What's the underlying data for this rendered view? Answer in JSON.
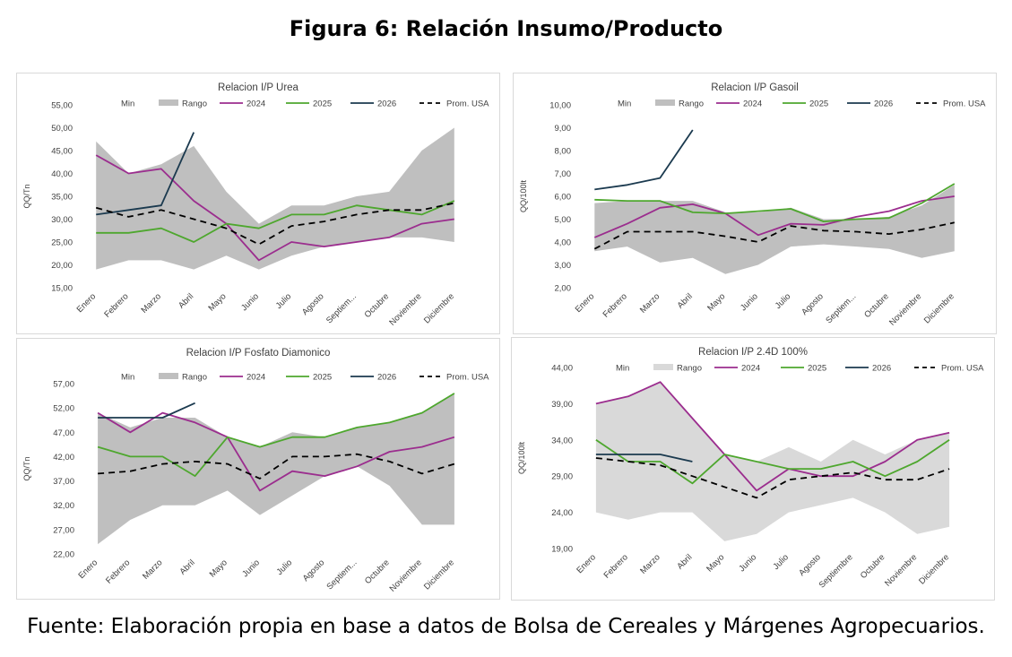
{
  "figure": {
    "title": "Figura 6: Relación Insumo/Producto",
    "source": "Fuente: Elaboración propia en base a datos de Bolsa de Cereales y Márgenes Agropecuarios."
  },
  "legend_labels": [
    "Min",
    "Rango",
    "2024",
    "2025",
    "2026",
    "Prom. USA"
  ],
  "colors": {
    "rango": "#bfbfbf",
    "rango_light": "#d9d9d9",
    "s2024": "#9b2d8e",
    "s2025": "#4ea72e",
    "s2026": "#1b3a4f",
    "prom": "#000000"
  },
  "chart_data": [
    {
      "type": "line",
      "title": "Relacion I/P Urea",
      "ylabel": "QQ/Tn",
      "ylim": [
        15,
        55
      ],
      "yticks": [
        "15,00",
        "20,00",
        "25,00",
        "30,00",
        "35,00",
        "40,00",
        "45,00",
        "50,00",
        "55,00"
      ],
      "categories": [
        "Enero",
        "Febrero",
        "Marzo",
        "Abril",
        "Mayo",
        "Junio",
        "Julio",
        "Agosto",
        "Septiem...",
        "Octubre",
        "Noviembre",
        "Diciembre"
      ],
      "legend": [
        "Min",
        "Rango",
        "2024",
        "2025",
        "2026",
        "Prom. USA"
      ],
      "range_min": [
        19,
        21,
        21,
        19,
        22,
        19,
        22,
        24,
        25,
        26,
        26,
        25
      ],
      "range_max": [
        47,
        40,
        42,
        46,
        36,
        29,
        33,
        33,
        35,
        36,
        45,
        50
      ],
      "series": [
        {
          "name": "2024",
          "values": [
            44,
            40,
            41,
            34,
            29,
            21,
            25,
            24,
            25,
            26,
            29,
            30
          ]
        },
        {
          "name": "2025",
          "values": [
            27,
            27,
            28,
            25,
            29,
            28,
            31,
            31,
            33,
            32,
            31,
            34
          ]
        },
        {
          "name": "2026",
          "values": [
            31,
            32,
            33,
            49,
            null,
            null,
            null,
            null,
            null,
            null,
            null,
            null
          ]
        },
        {
          "name": "Prom. USA",
          "values": [
            32.5,
            30.5,
            32,
            30,
            28,
            24.5,
            28.5,
            29.5,
            31,
            32,
            32,
            33.5
          ]
        }
      ]
    },
    {
      "type": "line",
      "title": "Relacion I/P Gasoil",
      "ylabel": "QQ/100lt",
      "ylim": [
        2,
        10
      ],
      "yticks": [
        "2,00",
        "3,00",
        "4,00",
        "5,00",
        "6,00",
        "7,00",
        "8,00",
        "9,00",
        "10,00"
      ],
      "categories": [
        "Enero",
        "Febrero",
        "Marzo",
        "Abril",
        "Mayo",
        "Junio",
        "Julio",
        "Agosto",
        "Septiem...",
        "Octubre",
        "Noviembre",
        "Diciembre"
      ],
      "legend": [
        "Min",
        "Rango",
        "2024",
        "2025",
        "2026",
        "Prom. USA"
      ],
      "range_min": [
        3.6,
        3.8,
        3.1,
        3.3,
        2.6,
        3.0,
        3.8,
        3.9,
        3.8,
        3.7,
        3.3,
        3.6
      ],
      "range_max": [
        5.7,
        5.8,
        5.8,
        5.8,
        5.3,
        5.3,
        5.5,
        5.0,
        5.0,
        5.1,
        5.6,
        6.5
      ],
      "series": [
        {
          "name": "2024",
          "values": [
            4.2,
            4.8,
            5.5,
            5.65,
            5.25,
            4.3,
            4.8,
            4.75,
            5.1,
            5.35,
            5.8,
            6.0
          ]
        },
        {
          "name": "2025",
          "values": [
            5.85,
            5.8,
            5.8,
            5.3,
            5.25,
            5.35,
            5.45,
            4.9,
            5.0,
            5.05,
            5.7,
            6.55
          ]
        },
        {
          "name": "2026",
          "values": [
            6.3,
            6.5,
            6.8,
            8.9,
            null,
            null,
            null,
            null,
            null,
            null,
            null,
            null
          ]
        },
        {
          "name": "Prom. USA",
          "values": [
            3.7,
            4.45,
            4.45,
            4.45,
            4.25,
            4.0,
            4.7,
            4.5,
            4.45,
            4.35,
            4.55,
            4.85
          ]
        }
      ]
    },
    {
      "type": "line",
      "title": "Relacion I/P Fosfato Diamonico",
      "ylabel": "QQ/Tn",
      "ylim": [
        22,
        57
      ],
      "yticks": [
        "22,00",
        "27,00",
        "32,00",
        "37,00",
        "42,00",
        "47,00",
        "52,00",
        "57,00"
      ],
      "categories": [
        "Enero",
        "Febrero",
        "Marzo",
        "Abril",
        "Mayo",
        "Junio",
        "Julio",
        "Agosto",
        "Septiem...",
        "Octubre",
        "Noviembre",
        "Diciembre"
      ],
      "legend": [
        "Min",
        "Rango",
        "2024",
        "2025",
        "2026",
        "Prom. USA"
      ],
      "range_min": [
        24,
        29,
        32,
        32,
        35,
        30,
        34,
        38,
        40,
        36,
        28,
        28
      ],
      "range_max": [
        51,
        48,
        50,
        50,
        46,
        44,
        47,
        46,
        48,
        49,
        51,
        55
      ],
      "series": [
        {
          "name": "2024",
          "values": [
            51,
            47,
            51,
            49,
            46,
            35,
            39,
            38,
            40,
            43,
            44,
            46
          ]
        },
        {
          "name": "2025",
          "values": [
            44,
            42,
            42,
            38,
            46,
            44,
            46,
            46,
            48,
            49,
            51,
            55
          ]
        },
        {
          "name": "2026",
          "values": [
            50,
            50,
            50,
            53,
            null,
            null,
            null,
            null,
            null,
            null,
            null,
            null
          ]
        },
        {
          "name": "Prom. USA",
          "values": [
            38.5,
            39,
            40.5,
            41,
            40.5,
            37.5,
            42,
            42,
            42.5,
            41,
            38.5,
            40.5
          ]
        }
      ]
    },
    {
      "type": "line",
      "title": "Relacion I/P 2.4D 100%",
      "ylabel": "QQ/100lt",
      "ylim": [
        19,
        44
      ],
      "yticks": [
        "19,00",
        "24,00",
        "29,00",
        "34,00",
        "39,00",
        "44,00"
      ],
      "categories": [
        "Enero",
        "Febrero",
        "Marzo",
        "Abril",
        "Mayo",
        "Junio",
        "Julio",
        "Agosto",
        "Septiembre",
        "Octubre",
        "Noviembre",
        "Diciembre"
      ],
      "legend": [
        "Min",
        "Rango",
        "2024",
        "2025",
        "2026",
        "Prom. USA"
      ],
      "range_min": [
        24,
        23,
        24,
        24,
        20,
        21,
        24,
        25,
        26,
        24,
        21,
        22
      ],
      "range_max": [
        39,
        40,
        42,
        37,
        32,
        31,
        33,
        31,
        34,
        32,
        34,
        35
      ],
      "series": [
        {
          "name": "2024",
          "values": [
            39,
            40,
            42,
            37,
            32,
            27,
            30,
            29,
            29,
            31,
            34,
            35
          ]
        },
        {
          "name": "2025",
          "values": [
            34,
            31,
            31,
            28,
            32,
            31,
            30,
            30,
            31,
            29,
            31,
            34
          ]
        },
        {
          "name": "2026",
          "values": [
            32,
            32,
            32,
            31,
            null,
            null,
            null,
            null,
            null,
            null,
            null,
            null
          ]
        },
        {
          "name": "Prom. USA",
          "values": [
            31.5,
            31,
            30.5,
            29,
            27.5,
            26,
            28.5,
            29,
            29.5,
            28.5,
            28.5,
            30
          ]
        }
      ]
    }
  ]
}
